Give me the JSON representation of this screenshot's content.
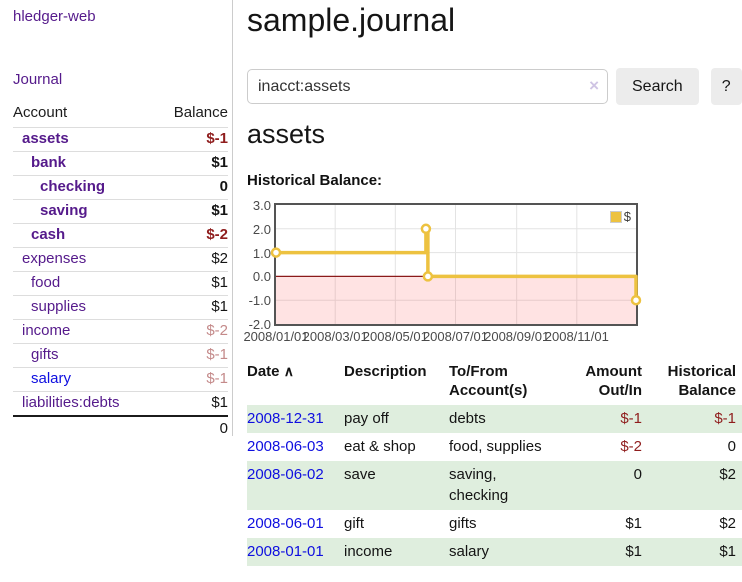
{
  "sidebar": {
    "app_title": "hledger-web",
    "journal_label": "Journal",
    "accounts_table": {
      "headers": {
        "account": "Account",
        "balance": "Balance"
      },
      "rows": [
        {
          "name": "assets",
          "depth": 1,
          "bold": true,
          "balance": "$-1",
          "balance_style": "negative-strong"
        },
        {
          "name": "bank",
          "depth": 2,
          "bold": true,
          "balance": "$1",
          "balance_style": "normal"
        },
        {
          "name": "checking",
          "depth": 3,
          "bold": true,
          "balance": "0",
          "balance_style": "normal"
        },
        {
          "name": "saving",
          "depth": 3,
          "bold": true,
          "balance": "$1",
          "balance_style": "normal"
        },
        {
          "name": "cash",
          "depth": 2,
          "bold": true,
          "balance": "$-2",
          "balance_style": "negative-strong"
        },
        {
          "name": "expenses",
          "depth": 1,
          "bold": false,
          "balance": "$2",
          "balance_style": "normal"
        },
        {
          "name": "food",
          "depth": 2,
          "bold": false,
          "balance": "$1",
          "balance_style": "normal"
        },
        {
          "name": "supplies",
          "depth": 2,
          "bold": false,
          "balance": "$1",
          "balance_style": "normal"
        },
        {
          "name": "income",
          "depth": 1,
          "bold": false,
          "balance": "$-2",
          "balance_style": "negative-soft"
        },
        {
          "name": "gifts",
          "depth": 2,
          "bold": false,
          "balance": "$-1",
          "balance_style": "negative-soft"
        },
        {
          "name": "salary",
          "depth": 2,
          "bold": false,
          "balance": "$-1",
          "balance_style": "negative-soft",
          "link_color": "blue"
        },
        {
          "name": "liabilities:debts",
          "depth": 1,
          "bold": false,
          "balance": "$1",
          "balance_style": "normal"
        }
      ],
      "total": "0"
    }
  },
  "header": {
    "title": "sample.journal"
  },
  "search": {
    "value": "inacct:assets",
    "clear_icon": "×",
    "button_label": "Search",
    "help_label": "?"
  },
  "account_page": {
    "heading": "assets",
    "chart_label": "Historical Balance:"
  },
  "chart_data": {
    "type": "line",
    "style": "step",
    "title": "Historical Balance:",
    "series": [
      {
        "name": "$",
        "color": "#edc240",
        "points": [
          [
            "2008-01-01",
            1
          ],
          [
            "2008-06-01",
            2
          ],
          [
            "2008-06-03",
            0
          ],
          [
            "2008-12-31",
            -1
          ]
        ]
      }
    ],
    "x_range": [
      "2008-01-01",
      "2008-12-31"
    ],
    "ylim": [
      -2,
      3
    ],
    "yticks": [
      3,
      2,
      1,
      0,
      -1,
      -2
    ],
    "xticks": [
      {
        "date": "2008-01-01",
        "label": "2008/01/01"
      },
      {
        "date": "2008-03-01",
        "label": "2008/03/01"
      },
      {
        "date": "2008-05-01",
        "label": "2008/05/01"
      },
      {
        "date": "2008-07-01",
        "label": "2008/07/01"
      },
      {
        "date": "2008-09-01",
        "label": "2008/09/01"
      },
      {
        "date": "2008-11-01",
        "label": "2008/11/01"
      }
    ],
    "grid": true,
    "legend_position": "top-right",
    "negative_region_shaded": true,
    "zero_line_color": "#8b1a1a"
  },
  "register_table": {
    "headers": [
      {
        "label": "Date",
        "sort_indicator": "∧"
      },
      {
        "label": "Description"
      },
      {
        "label": "To/From Account(s)"
      },
      {
        "label": "Amount Out/In"
      },
      {
        "label": "Historical Balance"
      }
    ],
    "rows": [
      {
        "date": "2008-12-31",
        "description": "pay off",
        "accounts": "debts",
        "amount": "$-1",
        "amount_negative": true,
        "balance": "$-1",
        "balance_negative": true
      },
      {
        "date": "2008-06-03",
        "description": "eat & shop",
        "accounts": "food, supplies",
        "amount": "$-2",
        "amount_negative": true,
        "balance": "0",
        "balance_negative": false
      },
      {
        "date": "2008-06-02",
        "description": "save",
        "accounts": "saving, checking",
        "amount": "0",
        "amount_negative": false,
        "balance": "$2",
        "balance_negative": false
      },
      {
        "date": "2008-06-01",
        "description": "gift",
        "accounts": "gifts",
        "amount": "$1",
        "amount_negative": false,
        "balance": "$2",
        "balance_negative": false
      },
      {
        "date": "2008-01-01",
        "description": "income",
        "accounts": "salary",
        "amount": "$1",
        "amount_negative": false,
        "balance": "$1",
        "balance_negative": false
      }
    ]
  },
  "colors": {
    "visited_link_purple": "#551a8b",
    "link_blue": "#0f0fe0",
    "negative_strong": "#8f1d1d",
    "negative_soft": "#c48a8a",
    "row_stripe_green": "#dfeede",
    "chart_line_gold": "#edc240",
    "chart_negative_fill": "#fbdede",
    "chart_zero_line": "#8b1a1a",
    "button_gray": "#ececec"
  }
}
